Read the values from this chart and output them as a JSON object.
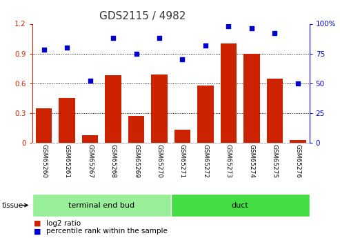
{
  "title": "GDS2115 / 4982",
  "categories": [
    "GSM65260",
    "GSM65261",
    "GSM65267",
    "GSM65268",
    "GSM65269",
    "GSM65270",
    "GSM65271",
    "GSM65272",
    "GSM65273",
    "GSM65274",
    "GSM65275",
    "GSM65276"
  ],
  "log2_ratio": [
    0.35,
    0.45,
    0.08,
    0.68,
    0.27,
    0.69,
    0.13,
    0.58,
    1.0,
    0.9,
    0.65,
    0.03
  ],
  "percentile_rank": [
    78,
    80,
    52,
    88,
    75,
    88,
    70,
    82,
    98,
    96,
    92,
    50
  ],
  "bar_color": "#cc2200",
  "scatter_color": "#0000cc",
  "left_ylim": [
    0,
    1.2
  ],
  "right_ylim": [
    0,
    100
  ],
  "left_yticks": [
    0,
    0.3,
    0.6,
    0.9,
    1.2
  ],
  "right_yticks": [
    0,
    25,
    50,
    75,
    100
  ],
  "left_ytick_labels": [
    "0",
    "0.3",
    "0.6",
    "0.9",
    "1.2"
  ],
  "right_ytick_labels": [
    "0",
    "25",
    "50",
    "75",
    "100%"
  ],
  "groups": [
    {
      "label": "terminal end bud",
      "start": 0,
      "end": 6,
      "color": "#99ee99"
    },
    {
      "label": "duct",
      "start": 6,
      "end": 12,
      "color": "#44dd44"
    }
  ],
  "tissue_label": "tissue",
  "legend_bar_label": "log2 ratio",
  "legend_scatter_label": "percentile rank within the sample",
  "bg_color": "#ffffff",
  "tick_area_color": "#bbbbbb",
  "grid_color": "#000000",
  "title_fontsize": 11,
  "axis_fontsize": 7.5,
  "label_fontsize": 6.5,
  "bar_width": 0.7
}
